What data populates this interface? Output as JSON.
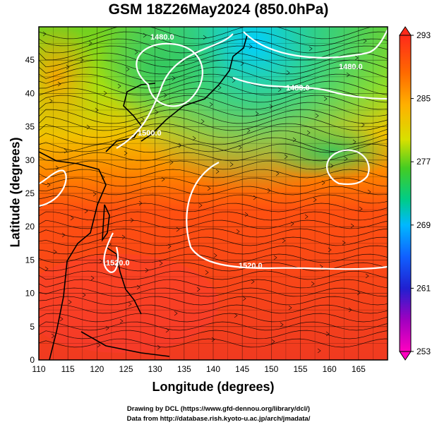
{
  "title": "GSM 18Z26May2024 (850.0hPa)",
  "chart_data": {
    "type": "heatmap",
    "title": "GSM 18Z26May2024 (850.0hPa)",
    "xlabel": "Longitude (degrees)",
    "ylabel": "Latitude  (degrees)",
    "xlim": [
      110,
      170
    ],
    "ylim": [
      0,
      50
    ],
    "x_ticks": [
      "110",
      "115",
      "120",
      "125",
      "130",
      "135",
      "140",
      "145",
      "150",
      "155",
      "160",
      "165"
    ],
    "y_ticks": [
      "0",
      "5",
      "10",
      "15",
      "20",
      "25",
      "30",
      "35",
      "40",
      "45"
    ],
    "colorbar": {
      "ticks": [
        "293",
        "285",
        "277",
        "269",
        "261",
        "253"
      ],
      "min": 253,
      "max": 293
    },
    "contour_labels": [
      "1480.0",
      "1480.0",
      "1480.0",
      "1500.0",
      "1520.0",
      "1520.0"
    ],
    "grid": true
  },
  "credits": {
    "line1": "Drawing by DCL (https://www.gfd-dennou.org/library/dcl/)",
    "line2": "Data from http://database.rish.kyoto-u.ac.jp/arch/jmadata/"
  }
}
